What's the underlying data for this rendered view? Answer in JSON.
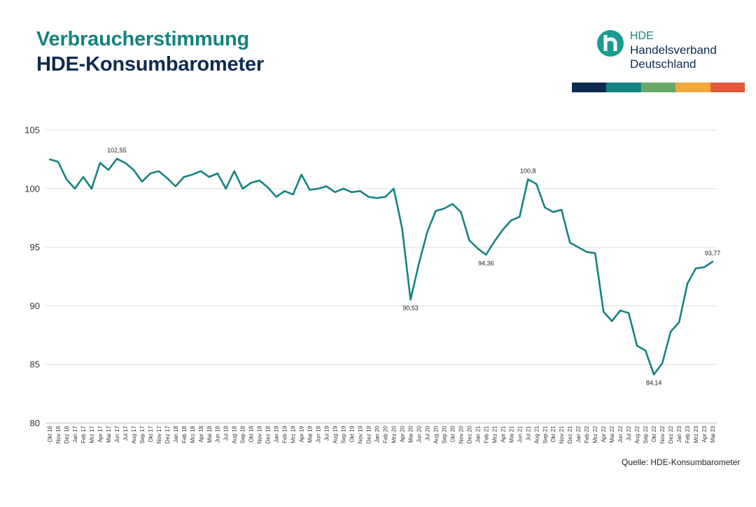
{
  "header": {
    "title_line1": "Verbraucherstimmung",
    "title_line2": "HDE-Konsumbarometer"
  },
  "logo": {
    "name_line1": "HDE",
    "name_line2": "Handelsverband",
    "name_line3": "Deutschland",
    "icon": "hde-logo-mark"
  },
  "colors": {
    "teal": "#14837f",
    "navy": "#0d2a4f",
    "brand_bar": [
      "#0d2a4f",
      "#14837f",
      "#6aa86a",
      "#f2a93b",
      "#e35a3b"
    ]
  },
  "source": "Quelle: HDE-Konsumbarometer",
  "chart_data": {
    "type": "line",
    "title": "",
    "xlabel": "",
    "ylabel": "",
    "ylim": [
      80,
      105
    ],
    "yticks": [
      80,
      85,
      90,
      95,
      100,
      105
    ],
    "grid": true,
    "categories": [
      "Okt 16",
      "Nov 16",
      "Dez 16",
      "Jan 17",
      "Feb 17",
      "Mrz 17",
      "Apr 17",
      "Mai 17",
      "Jun 17",
      "Jul 17",
      "Aug 17",
      "Sep 17",
      "Okt 17",
      "Nov 17",
      "Dez 17",
      "Jan 18",
      "Feb 18",
      "Mrz 18",
      "Apr 18",
      "Mai 18",
      "Jun 18",
      "Jul 18",
      "Aug 18",
      "Sep 18",
      "Okt 18",
      "Nov 18",
      "Dez 18",
      "Jan 19",
      "Feb 19",
      "Mrz 19",
      "Apr 19",
      "Mai 19",
      "Jun 19",
      "Jul 19",
      "Aug 19",
      "Sep 19",
      "Okt 19",
      "Nov 19",
      "Dez 19",
      "Jan 20",
      "Feb 20",
      "Mrz 20",
      "Apr 20",
      "Mai 20",
      "Jun 20",
      "Jul 20",
      "Aug 20",
      "Sep 20",
      "Okt 20",
      "Nov 20",
      "Dez 20",
      "Jan 21",
      "Feb 21",
      "Mrz 21",
      "Apr 21",
      "Mai 21",
      "Jun 21",
      "Jul 21",
      "Aug 21",
      "Sep 21",
      "Okt 21",
      "Nov 21",
      "Dez 21",
      "Jan 22",
      "Feb 22",
      "Mrz 22",
      "Apr 22",
      "Mai 22",
      "Jun 22",
      "Jul 22",
      "Aug 22",
      "Sep 22",
      "Okt 22",
      "Nov 22",
      "Dez 22",
      "Jan 23",
      "Feb 23",
      "Mrz 23",
      "Apr 23",
      "Mai 23"
    ],
    "series": [
      {
        "values": [
          102.5,
          102.3,
          100.8,
          100.0,
          101.0,
          100.0,
          102.2,
          101.6,
          102.55,
          102.2,
          101.6,
          100.6,
          101.3,
          101.5,
          100.9,
          100.2,
          101.0,
          101.2,
          101.5,
          101.0,
          101.3,
          100.0,
          101.5,
          100.0,
          100.5,
          100.7,
          100.1,
          99.3,
          99.8,
          99.5,
          101.2,
          99.9,
          100.0,
          100.2,
          99.7,
          100.0,
          99.7,
          99.8,
          99.3,
          99.2,
          99.3,
          100.0,
          96.6,
          90.53,
          93.6,
          96.3,
          98.1,
          98.3,
          98.7,
          98.0,
          95.6,
          94.9,
          94.36,
          95.5,
          96.5,
          97.3,
          97.6,
          100.8,
          100.4,
          98.4,
          98.0,
          98.2,
          95.4,
          95.0,
          94.6,
          94.5,
          89.5,
          88.7,
          89.6,
          89.4,
          86.6,
          86.2,
          84.14,
          85.1,
          87.8,
          88.6,
          91.9,
          93.2,
          93.3,
          93.77
        ]
      }
    ],
    "annotations": [
      {
        "index": 8,
        "text": "102,55",
        "position": "above"
      },
      {
        "index": 43,
        "text": "90,53",
        "position": "below"
      },
      {
        "index": 52,
        "text": "94,36",
        "position": "below"
      },
      {
        "index": 57,
        "text": "100,8",
        "position": "above"
      },
      {
        "index": 72,
        "text": "84,14",
        "position": "below"
      },
      {
        "index": 79,
        "text": "93,77",
        "position": "above"
      }
    ]
  }
}
